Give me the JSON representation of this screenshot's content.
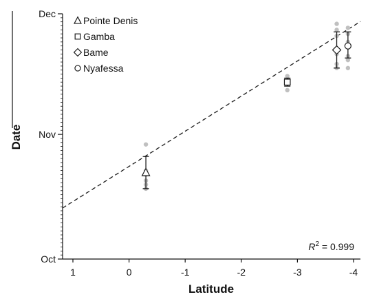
{
  "chart_data": {
    "type": "scatter",
    "xlabel": "Latitude",
    "ylabel": "Date",
    "x_reversed": true,
    "xlim": [
      1,
      -4
    ],
    "x_ticks": [
      "1",
      "0",
      "-1",
      "-2",
      "-3",
      "-4"
    ],
    "y_ticks": [
      "Oct",
      "Nov",
      "Dec"
    ],
    "ylim_days": [
      0,
      61
    ],
    "y_tick_days": [
      0,
      31,
      61
    ],
    "series": [
      {
        "name": "Pointe Denis",
        "marker": "triangle",
        "x": -0.3,
        "mean_day": 21.5,
        "error_low": 17.5,
        "error_high": 25.5,
        "raw_days": [
          28.5,
          22.0,
          21.0,
          19.5,
          18.5,
          17.5
        ]
      },
      {
        "name": "Gamba",
        "marker": "square",
        "x": -2.82,
        "mean_day": 44.0,
        "error_low": 43.0,
        "error_high": 45.0,
        "raw_days": [
          45.5,
          44.5,
          42.0
        ]
      },
      {
        "name": "Bame",
        "marker": "diamond",
        "x": -3.7,
        "mean_day": 52.0,
        "error_low": 47.5,
        "error_high": 56.5,
        "raw_days": [
          58.5,
          57.0,
          55.5,
          52.0,
          51.0,
          48.5,
          47.5
        ]
      },
      {
        "name": "Nyafessa",
        "marker": "circle",
        "x": -3.9,
        "mean_day": 53.0,
        "error_low": 50.0,
        "error_high": 56.5,
        "raw_days": [
          57.5,
          56.0,
          54.0,
          50.5,
          49.5,
          47.5
        ]
      }
    ],
    "trendline": {
      "style": "dashed",
      "x": [
        1,
        -4
      ],
      "y_days": [
        14.3,
        58.0
      ]
    },
    "annotation": {
      "r2_label": "R",
      "r2_exp": "2",
      "r2_value": " = 0.999"
    },
    "legend_position": "top-left",
    "grid": false,
    "colors": {
      "raw_points": "#c0c0c0",
      "markers": "#1a1a1a",
      "trendline": "#1a1a1a"
    }
  }
}
